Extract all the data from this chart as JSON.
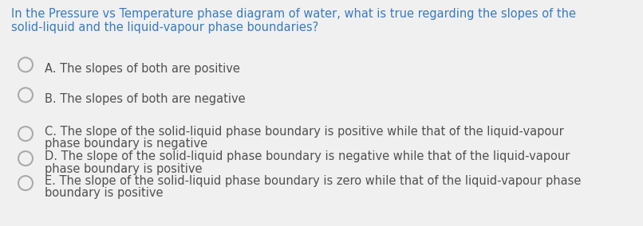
{
  "background_color": "#f0f0f0",
  "question_text_line1": "In the Pressure vs Temperature phase diagram of water, what is true regarding the slopes of the",
  "question_text_line2": "solid-liquid and the liquid-vapour phase boundaries?",
  "question_color": "#3a7bbf",
  "question_fontsize": 10.5,
  "options": [
    {
      "lines": [
        "A. The slopes of both are positive"
      ]
    },
    {
      "lines": [
        "B. The slopes of both are negative"
      ]
    },
    {
      "lines": [
        "C. The slope of the solid-liquid phase boundary is positive while that of the liquid-vapour",
        "phase boundary is negative"
      ]
    },
    {
      "lines": [
        "D. The slope of the solid-liquid phase boundary is negative while that of the liquid-vapour",
        "phase boundary is positive"
      ]
    },
    {
      "lines": [
        "E. The slope of the solid-liquid phase boundary is zero while that of the liquid-vapour phase",
        "boundary is positive"
      ]
    }
  ],
  "option_color": "#505050",
  "option_fontsize": 10.5,
  "circle_color": "#aaaaaa",
  "circle_linewidth": 1.5,
  "fig_width": 8.06,
  "fig_height": 2.84,
  "dpi": 100
}
